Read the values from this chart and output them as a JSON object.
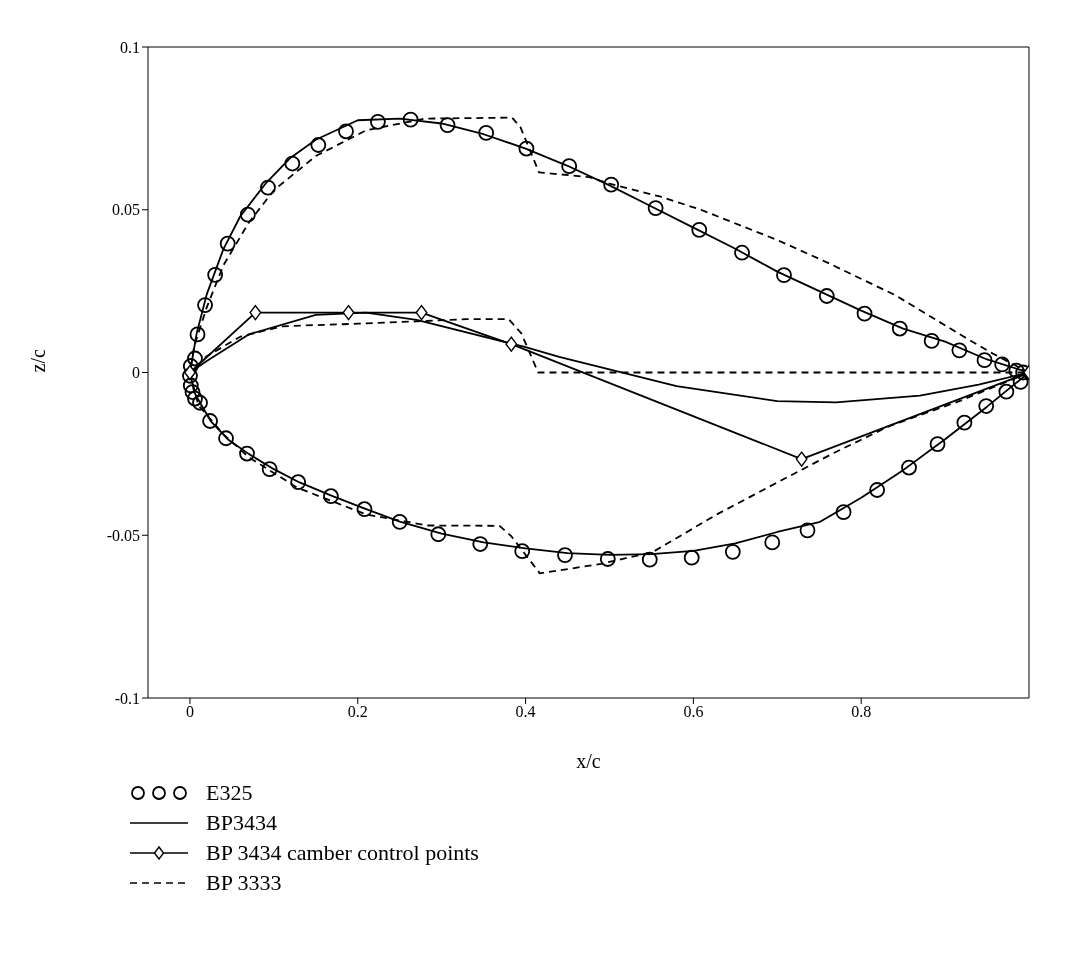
{
  "chart_data": {
    "type": "line",
    "xlabel": "x/c",
    "ylabel": "z/c",
    "xlim": [
      -0.05,
      1
    ],
    "ylim": [
      -0.1,
      0.1
    ],
    "xticks": [
      0,
      0.2,
      0.4,
      0.6,
      0.8
    ],
    "yticks": [
      -0.1,
      -0.05,
      0,
      0.05,
      0.1
    ],
    "legend": "bottom",
    "series": [
      {
        "name": "E325",
        "type": "scatter",
        "marker": "circle",
        "color": "#000000",
        "x": [
          0.001,
          0,
          0.001,
          0.003,
          0.006,
          0.006,
          0.009,
          0.018,
          0.03,
          0.045,
          0.069,
          0.093,
          0.122,
          0.153,
          0.186,
          0.224,
          0.263,
          0.307,
          0.353,
          0.401,
          0.452,
          0.502,
          0.555,
          0.607,
          0.658,
          0.708,
          0.759,
          0.804,
          0.846,
          0.884,
          0.917,
          0.947,
          0.968,
          0.985,
          0.993,
          0.012,
          0.024,
          0.043,
          0.068,
          0.095,
          0.129,
          0.168,
          0.208,
          0.25,
          0.296,
          0.346,
          0.396,
          0.447,
          0.498,
          0.548,
          0.598,
          0.647,
          0.694,
          0.736,
          0.779,
          0.819,
          0.857,
          0.891,
          0.923,
          0.949,
          0.973,
          0.99
        ],
        "values": [
          0.002,
          -0.001,
          -0.004,
          -0.006,
          -0.008,
          0.0043,
          0.0117,
          0.0207,
          0.03,
          0.0396,
          0.0485,
          0.0568,
          0.0642,
          0.0699,
          0.0741,
          0.077,
          0.0777,
          0.076,
          0.0736,
          0.0688,
          0.0634,
          0.0577,
          0.0505,
          0.0438,
          0.0368,
          0.0299,
          0.0235,
          0.0181,
          0.0135,
          0.0097,
          0.0068,
          0.0038,
          0.0025,
          0.0006,
          0,
          -0.0093,
          -0.0149,
          -0.0202,
          -0.0249,
          -0.0297,
          -0.0337,
          -0.038,
          -0.042,
          -0.0459,
          -0.0497,
          -0.0527,
          -0.0549,
          -0.0561,
          -0.0573,
          -0.0575,
          -0.0569,
          -0.0551,
          -0.0522,
          -0.0485,
          -0.0429,
          -0.0361,
          -0.0292,
          -0.022,
          -0.0154,
          -0.0103,
          -0.0059,
          -0.0029
        ]
      },
      {
        "name": "BP3434",
        "line_style": "solid",
        "marker": "none",
        "color": "#000000",
        "x": [
          1,
          0.95,
          0.9,
          0.85,
          0.8,
          0.75,
          0.7,
          0.65,
          0.6,
          0.55,
          0.5,
          0.45,
          0.4,
          0.35,
          0.3,
          0.25,
          0.2,
          0.15,
          0.12,
          0.09,
          0.06,
          0.04,
          0.02,
          0.008,
          0,
          0.005,
          0.012,
          0.025,
          0.045,
          0.07,
          0.1,
          0.13,
          0.17,
          0.21,
          0.25,
          0.3,
          0.35,
          0.4,
          0.45,
          0.5,
          0.55,
          0.6,
          0.65,
          0.7,
          0.75,
          0.8,
          0.85,
          0.9,
          0.95,
          1,
          0.94,
          0.87,
          0.77,
          0.7,
          0.58,
          0.44,
          0.4,
          0.27,
          0.21,
          0.15,
          0.07,
          0.02,
          0
        ],
        "values": [
          0,
          0.004,
          0.0095,
          0.0135,
          0.019,
          0.025,
          0.031,
          0.038,
          0.0445,
          0.051,
          0.0575,
          0.0635,
          0.0688,
          0.0732,
          0.0765,
          0.078,
          0.0775,
          0.0715,
          0.066,
          0.058,
          0.048,
          0.038,
          0.024,
          0.012,
          0,
          -0.006,
          -0.0093,
          -0.015,
          -0.0205,
          -0.025,
          -0.0297,
          -0.0337,
          -0.038,
          -0.042,
          -0.0458,
          -0.0495,
          -0.0522,
          -0.054,
          -0.0555,
          -0.056,
          -0.0558,
          -0.0548,
          -0.0525,
          -0.049,
          -0.046,
          -0.0385,
          -0.03,
          -0.0205,
          -0.0105,
          0,
          -0.0037,
          -0.0071,
          -0.0092,
          -0.0088,
          -0.0042,
          0.0048,
          0.0078,
          0.0162,
          0.0184,
          0.0177,
          0.0117,
          0.0035,
          0
        ]
      },
      {
        "name": "BP 3434 camber control points",
        "line_style": "solid",
        "marker": "diamond",
        "color": "#000000",
        "x": [
          0,
          0.078,
          0.189,
          0.276,
          0.383,
          0.729,
          1
        ],
        "values": [
          0,
          0.0184,
          0.0184,
          0.0184,
          0.0087,
          -0.0266,
          0
        ]
      },
      {
        "name": "BP 3333",
        "line_style": "dashed",
        "marker": "none",
        "color": "#000000",
        "x": [
          1,
          0.957,
          0.921,
          0.841,
          0.761,
          0.701,
          0.609,
          0.561,
          0.5,
          0.476,
          0.416,
          0.394,
          0.384,
          0.28,
          0.21,
          0.15,
          0.1,
          0.07,
          0.04,
          0.02,
          0.005,
          0,
          0.01,
          0.04,
          0.07,
          0.128,
          0.21,
          0.283,
          0.369,
          0.383,
          0.417,
          0.49,
          0.552,
          0.628,
          0.697,
          0.766,
          0.834,
          0.917,
          1,
          0.415,
          0.395,
          0.38,
          0.33,
          0.27,
          0.2,
          0.11,
          0.06,
          0.02,
          0
        ],
        "values": [
          0,
          0.0058,
          0.0112,
          0.0237,
          0.0336,
          0.0406,
          0.05,
          0.054,
          0.058,
          0.06,
          0.0615,
          0.0753,
          0.0783,
          0.078,
          0.0744,
          0.0665,
          0.056,
          0.046,
          0.033,
          0.02,
          0.008,
          0,
          -0.01,
          -0.019,
          -0.026,
          -0.0354,
          -0.0436,
          -0.047,
          -0.0471,
          -0.0503,
          -0.0617,
          -0.0588,
          -0.0551,
          -0.0436,
          -0.0342,
          -0.0249,
          -0.0164,
          -0.0088,
          0,
          0,
          0.012,
          0.0164,
          0.0164,
          0.0157,
          0.015,
          0.0142,
          0.011,
          0.005,
          0
        ]
      }
    ]
  }
}
